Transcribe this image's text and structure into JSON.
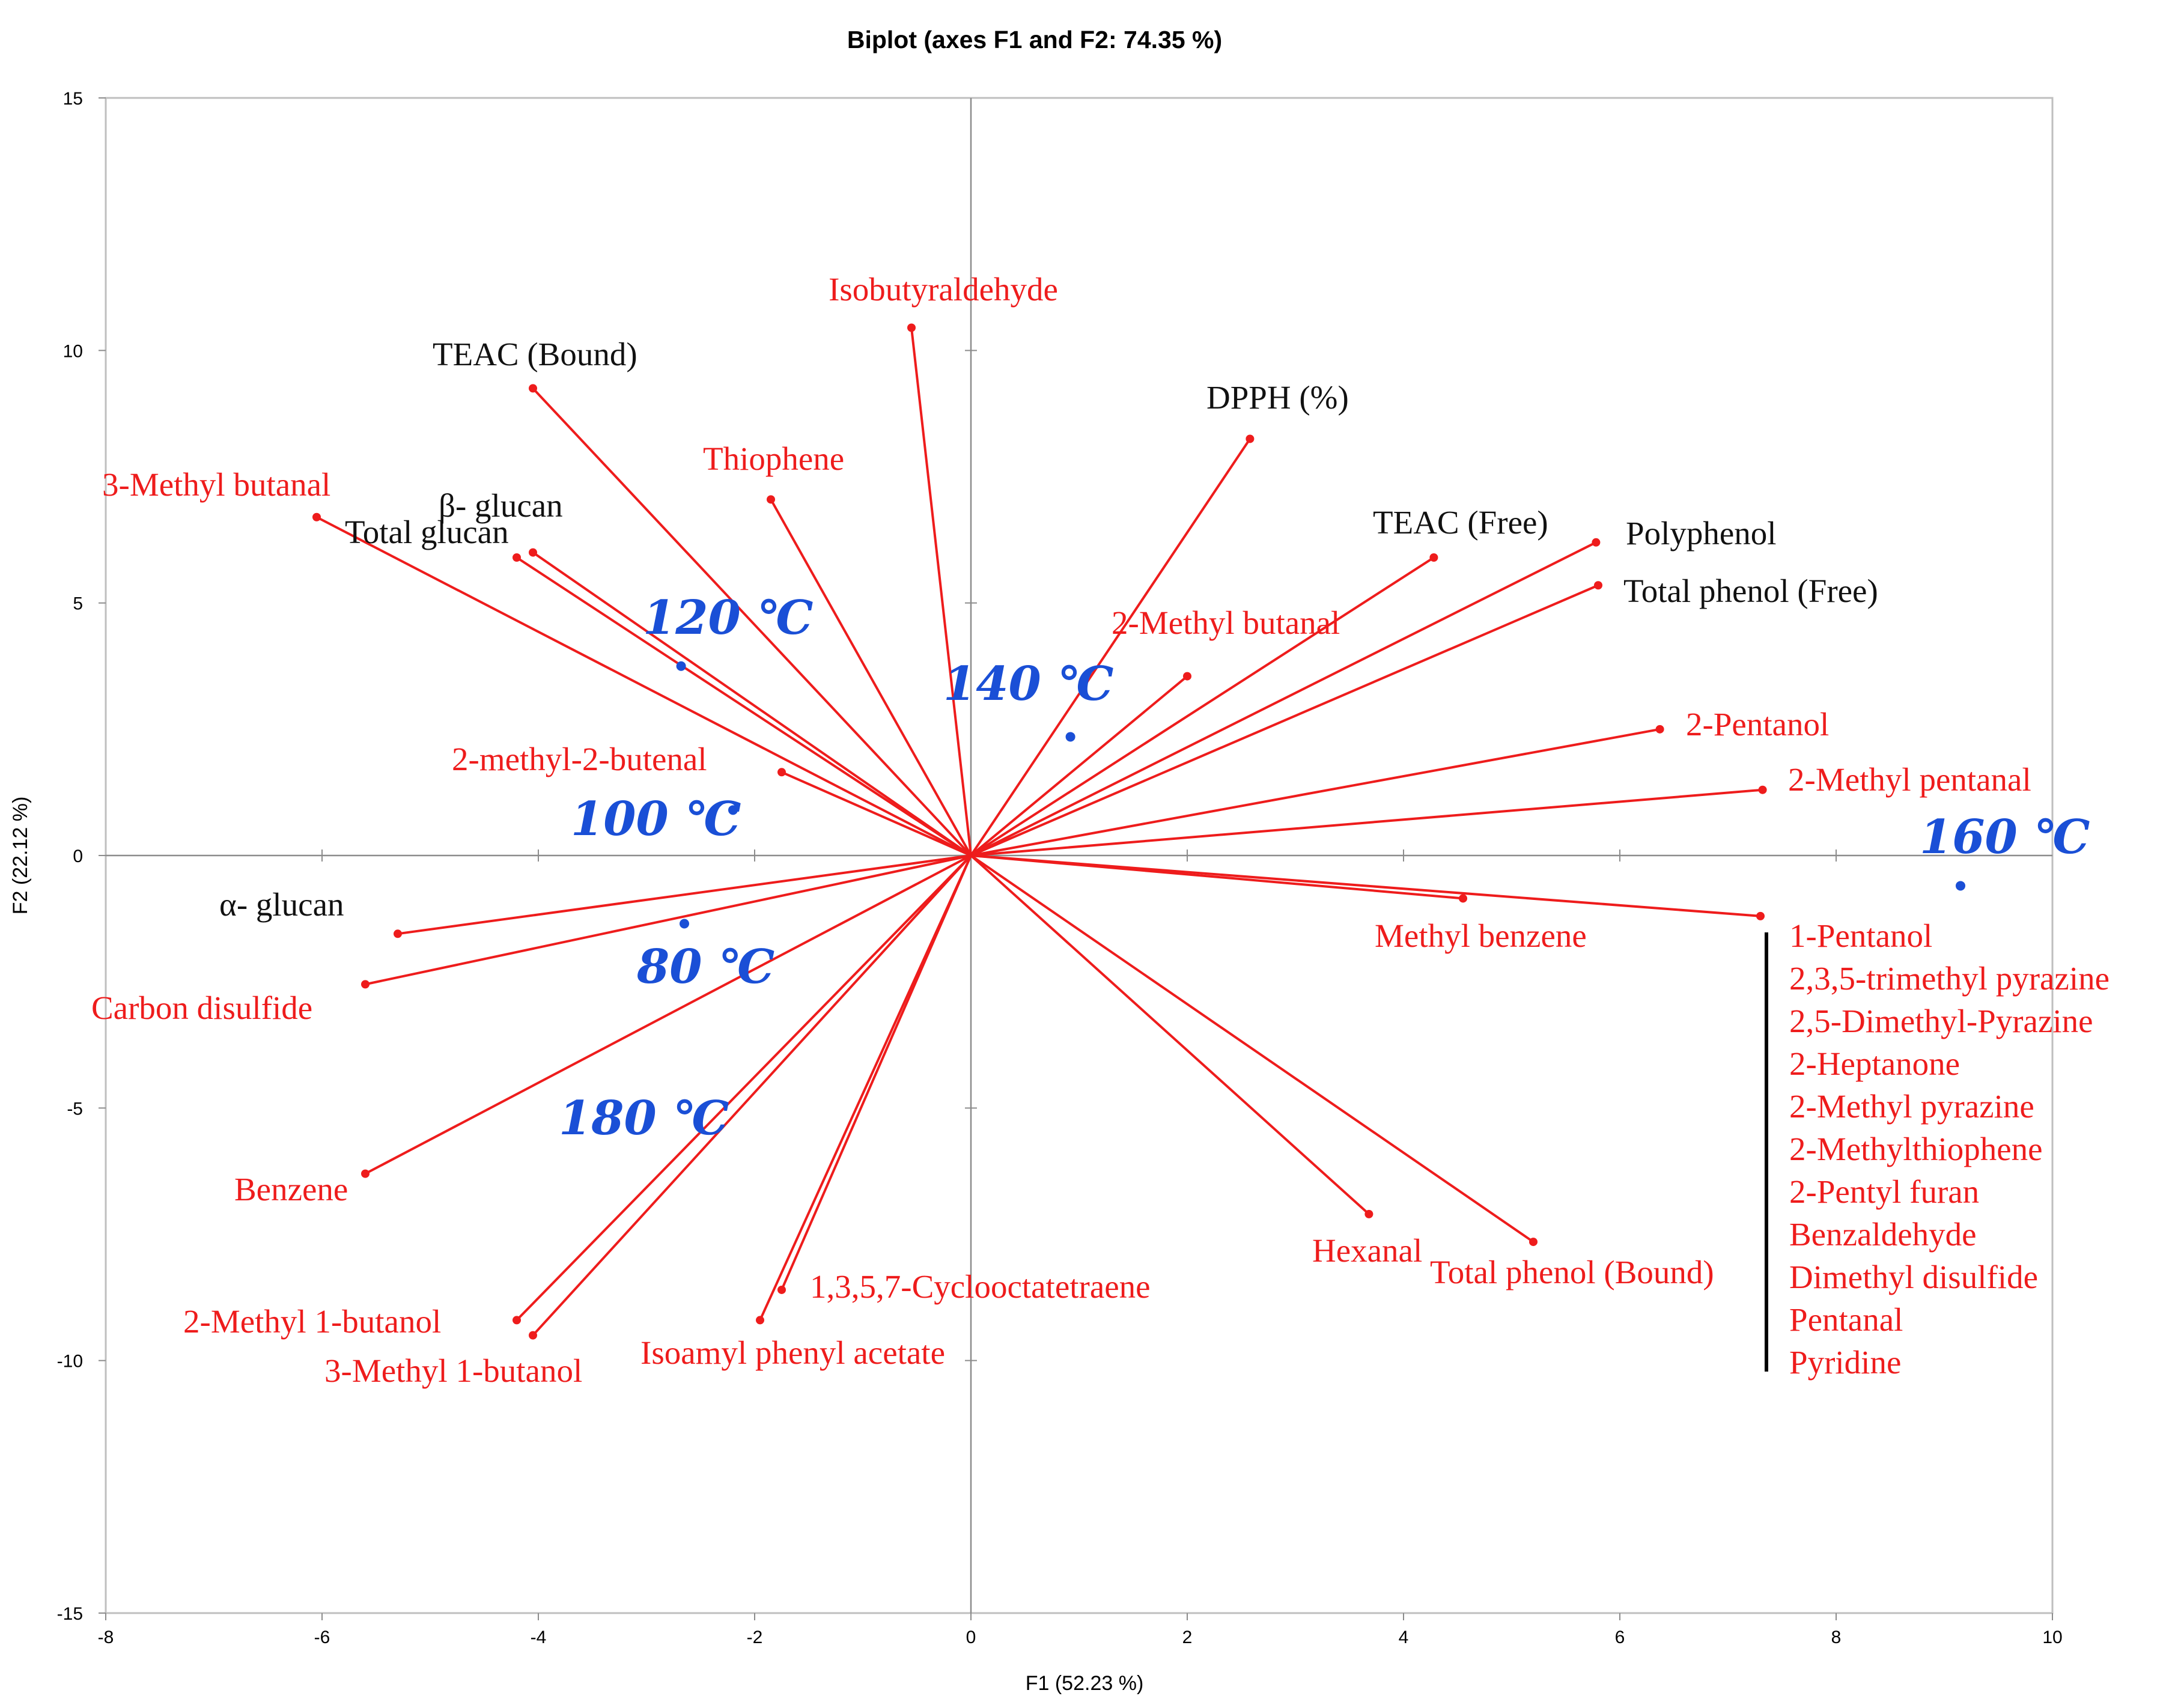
{
  "chart_data": {
    "type": "scatter",
    "subtype": "biplot",
    "title": "Biplot (axes F1 and F2: 74.35 %)",
    "xlabel": "F1 (52.23 %)",
    "ylabel": "F2 (22.12 %)",
    "xlim": [
      -8,
      10
    ],
    "ylim": [
      -15,
      15
    ],
    "x_ticks": [
      -8,
      -6,
      -4,
      -2,
      0,
      2,
      4,
      6,
      8,
      10
    ],
    "y_ticks": [
      -15,
      -10,
      -5,
      0,
      5,
      10,
      15
    ],
    "grid": false,
    "colors": {
      "vector": "#ee1c1c",
      "red_label": "#ee1c1c",
      "black_label": "#111111",
      "observation": "#1a4fd6",
      "axis": "#8c8c8c"
    },
    "variables": [
      {
        "label": "Isobutyraldehyde",
        "x": -0.55,
        "y": 10.45,
        "label_color": "red"
      },
      {
        "label": "TEAC (Bound)",
        "x": -4.05,
        "y": 9.25,
        "label_color": "black"
      },
      {
        "label": "DPPH (%)",
        "x": 2.58,
        "y": 8.25,
        "label_color": "black"
      },
      {
        "label": "Thiophene",
        "x": -1.85,
        "y": 7.05,
        "label_color": "red"
      },
      {
        "label": "3-Methyl butanal",
        "x": -6.05,
        "y": 6.7,
        "label_color": "red"
      },
      {
        "label": "β- glucan",
        "x": -4.05,
        "y": 6.0,
        "label_color": "black"
      },
      {
        "label": "Total glucan",
        "x": -4.2,
        "y": 5.9,
        "label_color": "black"
      },
      {
        "label": "TEAC (Free)",
        "x": 4.28,
        "y": 5.9,
        "label_color": "black"
      },
      {
        "label": "Polyphenol",
        "x": 5.78,
        "y": 6.2,
        "label_color": "black"
      },
      {
        "label": "Total phenol (Free)",
        "x": 5.8,
        "y": 5.35,
        "label_color": "black"
      },
      {
        "label": "2-Methyl butanal",
        "x": 2.0,
        "y": 3.55,
        "label_color": "red"
      },
      {
        "label": "2-Pentanol",
        "x": 6.37,
        "y": 2.5,
        "label_color": "red"
      },
      {
        "label": "2-Methyl pentanal",
        "x": 7.32,
        "y": 1.3,
        "label_color": "red"
      },
      {
        "label": "2-methyl-2-butenal",
        "x": -1.75,
        "y": 1.65,
        "label_color": "red"
      },
      {
        "label": "α- glucan",
        "x": -5.3,
        "y": -1.55,
        "label_color": "black"
      },
      {
        "label": "Carbon disulfide",
        "x": -5.6,
        "y": -2.55,
        "label_color": "red"
      },
      {
        "label": "Methyl benzene",
        "x": 4.55,
        "y": -0.85,
        "label_color": "red"
      },
      {
        "label": "1-Pentanol",
        "x": 7.3,
        "y": -1.2,
        "label_color": "red"
      },
      {
        "label": "Benzene",
        "x": -5.6,
        "y": -6.3,
        "label_color": "red"
      },
      {
        "label": "Hexanal",
        "x": 3.68,
        "y": -7.1,
        "label_color": "red"
      },
      {
        "label": "Total phenol (Bound)",
        "x": 5.2,
        "y": -7.65,
        "label_color": "red"
      },
      {
        "label": "2-Methyl 1-butanol",
        "x": -4.2,
        "y": -9.2,
        "label_color": "red"
      },
      {
        "label": "3-Methyl 1-butanol",
        "x": -4.05,
        "y": -9.5,
        "label_color": "red"
      },
      {
        "label": "1,3,5,7-Cyclooctatetraene",
        "x": -1.75,
        "y": -8.6,
        "label_color": "red"
      },
      {
        "label": "Isoamyl phenyl acetate",
        "x": -1.95,
        "y": -9.2,
        "label_color": "red"
      }
    ],
    "grouped_labels": [
      "1-Pentanol",
      "2,3,5-trimethyl pyrazine",
      "2,5-Dimethyl-Pyrazine",
      "2-Heptanone",
      "2-Methyl pyrazine",
      "2-Methylthiophene",
      "2-Pentyl furan",
      "Benzaldehyde",
      "Dimethyl disulfide",
      "Pentanal",
      "Pyridine"
    ],
    "observations": [
      {
        "label": "120 ℃",
        "x": -2.68,
        "y": 3.75
      },
      {
        "label": "140 ℃",
        "x": 0.92,
        "y": 2.35
      },
      {
        "label": "100 ℃",
        "x": -2.2,
        "y": 0.9
      },
      {
        "label": "160 ℃",
        "x": 9.15,
        "y": -0.6
      },
      {
        "label": "80 ℃",
        "x": -2.65,
        "y": -1.35
      }
    ],
    "unmarked_observation_labels": [
      "180 ℃"
    ]
  }
}
